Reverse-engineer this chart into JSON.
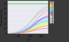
{
  "xlabel": "t [s]",
  "ylabel": "Temperature [°C]",
  "ylim": [
    0,
    65
  ],
  "xlim": [
    0,
    1800
  ],
  "yticks": [
    0,
    10,
    20,
    30,
    40,
    50,
    60
  ],
  "xticks": [
    500,
    1000,
    1500
  ],
  "limit_value": 60,
  "num_sensors": 20,
  "bg_color": "#3a3a3a",
  "plot_bg": "#e8e8f0",
  "colors": [
    "#ff4444",
    "#ff8800",
    "#ffcc00",
    "#ffff44",
    "#ccff44",
    "#44ff44",
    "#44ffcc",
    "#44ffff",
    "#44ccff",
    "#4488ff",
    "#8844ff",
    "#ff44ff",
    "#ffaadd",
    "#aaffee",
    "#ffffaa",
    "#aaaaff",
    "#ffaaaa",
    "#aaffaa",
    "#ff88aa",
    "#88eeff"
  ],
  "legend_labels": [
    "1",
    "2",
    "3",
    "4",
    "5",
    "6",
    "7",
    "8",
    "9",
    "10",
    "11",
    "12",
    "13",
    "14",
    "15",
    "16",
    "17",
    "18",
    "19",
    "20"
  ]
}
